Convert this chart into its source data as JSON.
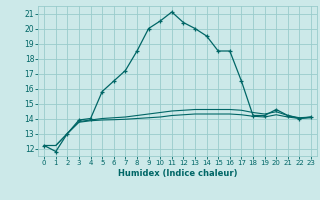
{
  "xlabel": "Humidex (Indice chaleur)",
  "bg_color": "#cce9e9",
  "grid_color": "#99cccc",
  "line_color": "#006666",
  "x": [
    0,
    1,
    2,
    3,
    4,
    5,
    6,
    7,
    8,
    9,
    10,
    11,
    12,
    13,
    14,
    15,
    16,
    17,
    18,
    19,
    20,
    21,
    22,
    23
  ],
  "y_main": [
    12.2,
    11.8,
    13.0,
    13.9,
    14.0,
    15.8,
    16.5,
    17.2,
    18.5,
    20.0,
    20.5,
    21.1,
    20.4,
    20.0,
    19.5,
    18.5,
    18.5,
    16.5,
    14.2,
    14.2,
    14.6,
    14.2,
    14.0,
    14.1
  ],
  "y_flat1": [
    12.2,
    12.2,
    13.0,
    13.8,
    13.9,
    14.0,
    14.05,
    14.1,
    14.2,
    14.3,
    14.4,
    14.5,
    14.55,
    14.6,
    14.6,
    14.6,
    14.6,
    14.55,
    14.4,
    14.3,
    14.45,
    14.2,
    14.05,
    14.1
  ],
  "y_flat2": [
    12.2,
    12.2,
    13.0,
    13.75,
    13.85,
    13.9,
    13.92,
    13.95,
    14.0,
    14.05,
    14.1,
    14.2,
    14.25,
    14.3,
    14.3,
    14.3,
    14.3,
    14.25,
    14.15,
    14.1,
    14.25,
    14.1,
    14.0,
    14.05
  ],
  "ylim": [
    11.5,
    21.5
  ],
  "xlim": [
    -0.5,
    23.5
  ],
  "yticks": [
    12,
    13,
    14,
    15,
    16,
    17,
    18,
    19,
    20,
    21
  ],
  "xticks": [
    0,
    1,
    2,
    3,
    4,
    5,
    6,
    7,
    8,
    9,
    10,
    11,
    12,
    13,
    14,
    15,
    16,
    17,
    18,
    19,
    20,
    21,
    22,
    23
  ]
}
